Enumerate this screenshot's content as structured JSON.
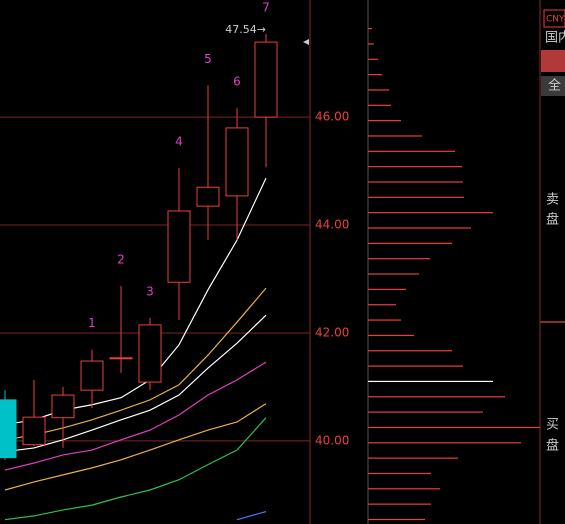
{
  "chart_data": [
    {
      "type": "candlestick",
      "categories": [
        null,
        null,
        null,
        null,
        null,
        null,
        null,
        null,
        null,
        null
      ],
      "open": [
        40.76,
        39.93,
        40.43,
        40.94,
        41.54,
        41.09,
        42.94,
        44.35,
        44.54,
        46.0
      ],
      "high": [
        40.94,
        41.13,
        41.0,
        41.69,
        42.87,
        42.28,
        45.06,
        46.59,
        46.17,
        47.54
      ],
      "low": [
        39.65,
        39.9,
        39.87,
        40.61,
        41.26,
        40.94,
        42.24,
        43.72,
        43.72,
        45.07
      ],
      "close": [
        39.69,
        40.44,
        40.85,
        41.48,
        41.54,
        42.15,
        44.26,
        44.7,
        45.8,
        47.39
      ],
      "labels": [
        null,
        null,
        null,
        "1",
        "2",
        "3",
        "4",
        "5",
        "6",
        "7"
      ],
      "annotation": "47.54→",
      "up_color": "#e8403c",
      "down_color": "#00c0c8",
      "label_color": "#e040c0",
      "lines": [
        {
          "color": "#ffffff",
          "values": [
            40.3,
            40.39,
            40.57,
            40.67,
            40.8,
            41.13,
            41.78,
            42.8,
            43.72,
            44.87
          ]
        },
        {
          "color": "#e8b040",
          "values": [
            40.02,
            40.11,
            40.24,
            40.39,
            40.57,
            40.76,
            41.04,
            41.59,
            42.2,
            42.83
          ]
        },
        {
          "color": "#ffffff",
          "values": [
            39.8,
            39.87,
            40.02,
            40.2,
            40.39,
            40.57,
            40.85,
            41.35,
            41.81,
            42.33
          ]
        },
        {
          "color": "#e040c0",
          "values": [
            39.46,
            39.59,
            39.74,
            39.83,
            40.02,
            40.2,
            40.48,
            40.85,
            41.13,
            41.46
          ]
        },
        {
          "color": "#e8b040",
          "values": [
            39.09,
            39.24,
            39.37,
            39.5,
            39.65,
            39.83,
            40.02,
            40.2,
            40.35,
            40.69
          ]
        },
        {
          "color": "#30c050",
          "values": [
            38.54,
            38.61,
            38.72,
            38.81,
            38.96,
            39.09,
            39.28,
            39.56,
            39.83,
            40.43
          ]
        },
        {
          "color": "#4080ff",
          "values": [
            null,
            null,
            null,
            null,
            null,
            null,
            null,
            null,
            38.54,
            38.69
          ]
        }
      ],
      "ylim": [
        38.46,
        48.17
      ],
      "yticks": [
        {
          "value": 40,
          "label": "40.00"
        },
        {
          "value": 42,
          "label": "42.00"
        },
        {
          "value": 44,
          "label": "44.00"
        },
        {
          "value": 46,
          "label": "46.00"
        }
      ],
      "grid": true
    },
    {
      "type": "bar",
      "orientation": "horizontal",
      "values": [
        4,
        6,
        10,
        14,
        21,
        23,
        33,
        54,
        87,
        94,
        95,
        96,
        125,
        103,
        84,
        62,
        51,
        38,
        28,
        33,
        46,
        84,
        95,
        125,
        137,
        115,
        172,
        153,
        90,
        63,
        72,
        63,
        57
      ],
      "colors": [
        "#e8403c",
        "#e8403c",
        "#e8403c",
        "#e8403c",
        "#e8403c",
        "#e8403c",
        "#e8403c",
        "#e8403c",
        "#e8403c",
        "#e8403c",
        "#e8403c",
        "#e8403c",
        "#e8403c",
        "#e8403c",
        "#e8403c",
        "#e8403c",
        "#e8403c",
        "#e8403c",
        "#e8403c",
        "#e8403c",
        "#e8403c",
        "#e8403c",
        "#e8403c",
        "#ffffff",
        "#e8403c",
        "#e8403c",
        "#e8403c",
        "#e8403c",
        "#e8403c",
        "#e8403c",
        "#e8403c",
        "#e8403c",
        "#e8403c"
      ]
    }
  ],
  "panel": {
    "currency": "CNY",
    "market": "国内",
    "tab": "全",
    "sell": [
      "卖",
      "盘"
    ],
    "buy": [
      "买",
      "盘"
    ]
  }
}
